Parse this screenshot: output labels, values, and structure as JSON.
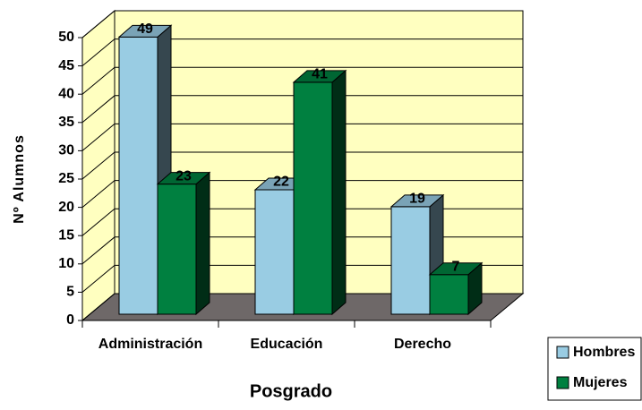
{
  "chart_data": {
    "type": "bar3d",
    "x_label": "Posgrado",
    "y_label": "Nº Alumnos",
    "categories": [
      "Administración",
      "Educación",
      "Derecho"
    ],
    "series": [
      {
        "name": "Hombres",
        "color": "#99cce3",
        "values": [
          49,
          22,
          19
        ]
      },
      {
        "name": "Mujeres",
        "color": "#008040",
        "values": [
          23,
          41,
          7
        ]
      }
    ],
    "ylim": [
      0,
      50
    ],
    "yticks": [
      0,
      5,
      10,
      15,
      20,
      25,
      30,
      35,
      40,
      45,
      50
    ],
    "grid": true,
    "legend": "bottom-right"
  }
}
